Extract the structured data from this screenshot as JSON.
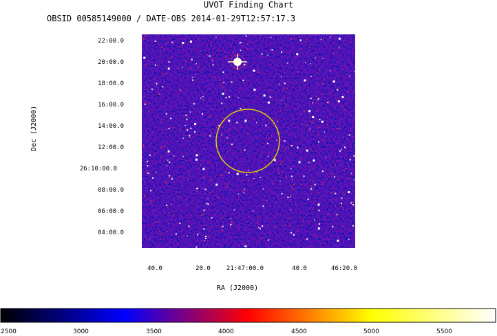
{
  "chart_data": {
    "type": "heatmap",
    "title": "UVOT Finding Chart",
    "subtitle": "OBSID 00585149000 / DATE-OBS 2014-01-29T12:57:17.3",
    "xlabel": "RA (J2000)",
    "ylabel": "Dec (J2000)",
    "x_ticks": [
      "40.0",
      "20.0",
      "21:47:00.0",
      "40.0",
      "46:20.0"
    ],
    "y_ticks": [
      "22:00.0",
      "20:00.0",
      "18:00.0",
      "16:00.0",
      "14:00.0",
      "12:00.0",
      "26:10:00.0",
      "08:00.0",
      "06:00.0",
      "04:00.0"
    ],
    "colorbar": {
      "ticks": [
        "2500",
        "3000",
        "3500",
        "4000",
        "4500",
        "5000",
        "5500"
      ],
      "range": [
        2500,
        5800
      ],
      "colormap": [
        "#000000",
        "#0000ff",
        "#ff0000",
        "#ffff00",
        "#ffffff"
      ]
    },
    "background_color": "#2a22b8",
    "region_circle_color": "#e0d000"
  }
}
